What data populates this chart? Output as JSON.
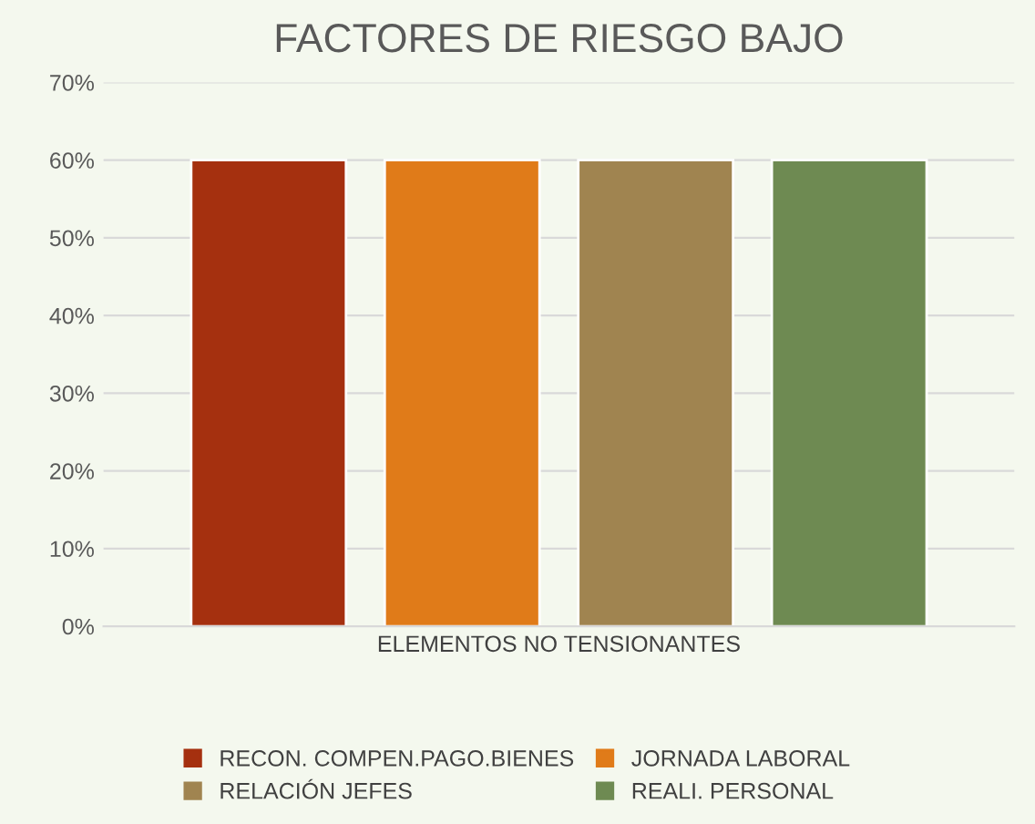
{
  "chart_data": {
    "type": "bar",
    "title": "FACTORES DE RIESGO BAJO",
    "categories": [
      "ELEMENTOS NO TENSIONANTES"
    ],
    "series": [
      {
        "name": "RECON. COMPEN.PAGO.BIENES",
        "color": "#a5300f",
        "values": [
          60
        ]
      },
      {
        "name": "JORNADA LABORAL",
        "color": "#e07b19",
        "values": [
          60
        ]
      },
      {
        "name": "RELACIÓN JEFES",
        "color": "#a08450",
        "values": [
          60
        ]
      },
      {
        "name": "REALI. PERSONAL",
        "color": "#6e8a52",
        "values": [
          60
        ]
      }
    ],
    "ylim": [
      0,
      70
    ],
    "yticks": [
      {
        "value": 0,
        "label": "0%"
      },
      {
        "value": 10,
        "label": "10%"
      },
      {
        "value": 20,
        "label": "20%"
      },
      {
        "value": 30,
        "label": "30%"
      },
      {
        "value": 40,
        "label": "40%"
      },
      {
        "value": 50,
        "label": "50%"
      },
      {
        "value": 60,
        "label": "60%"
      },
      {
        "value": 70,
        "label": "70%"
      }
    ],
    "grid": "y",
    "legend": "bottom"
  }
}
